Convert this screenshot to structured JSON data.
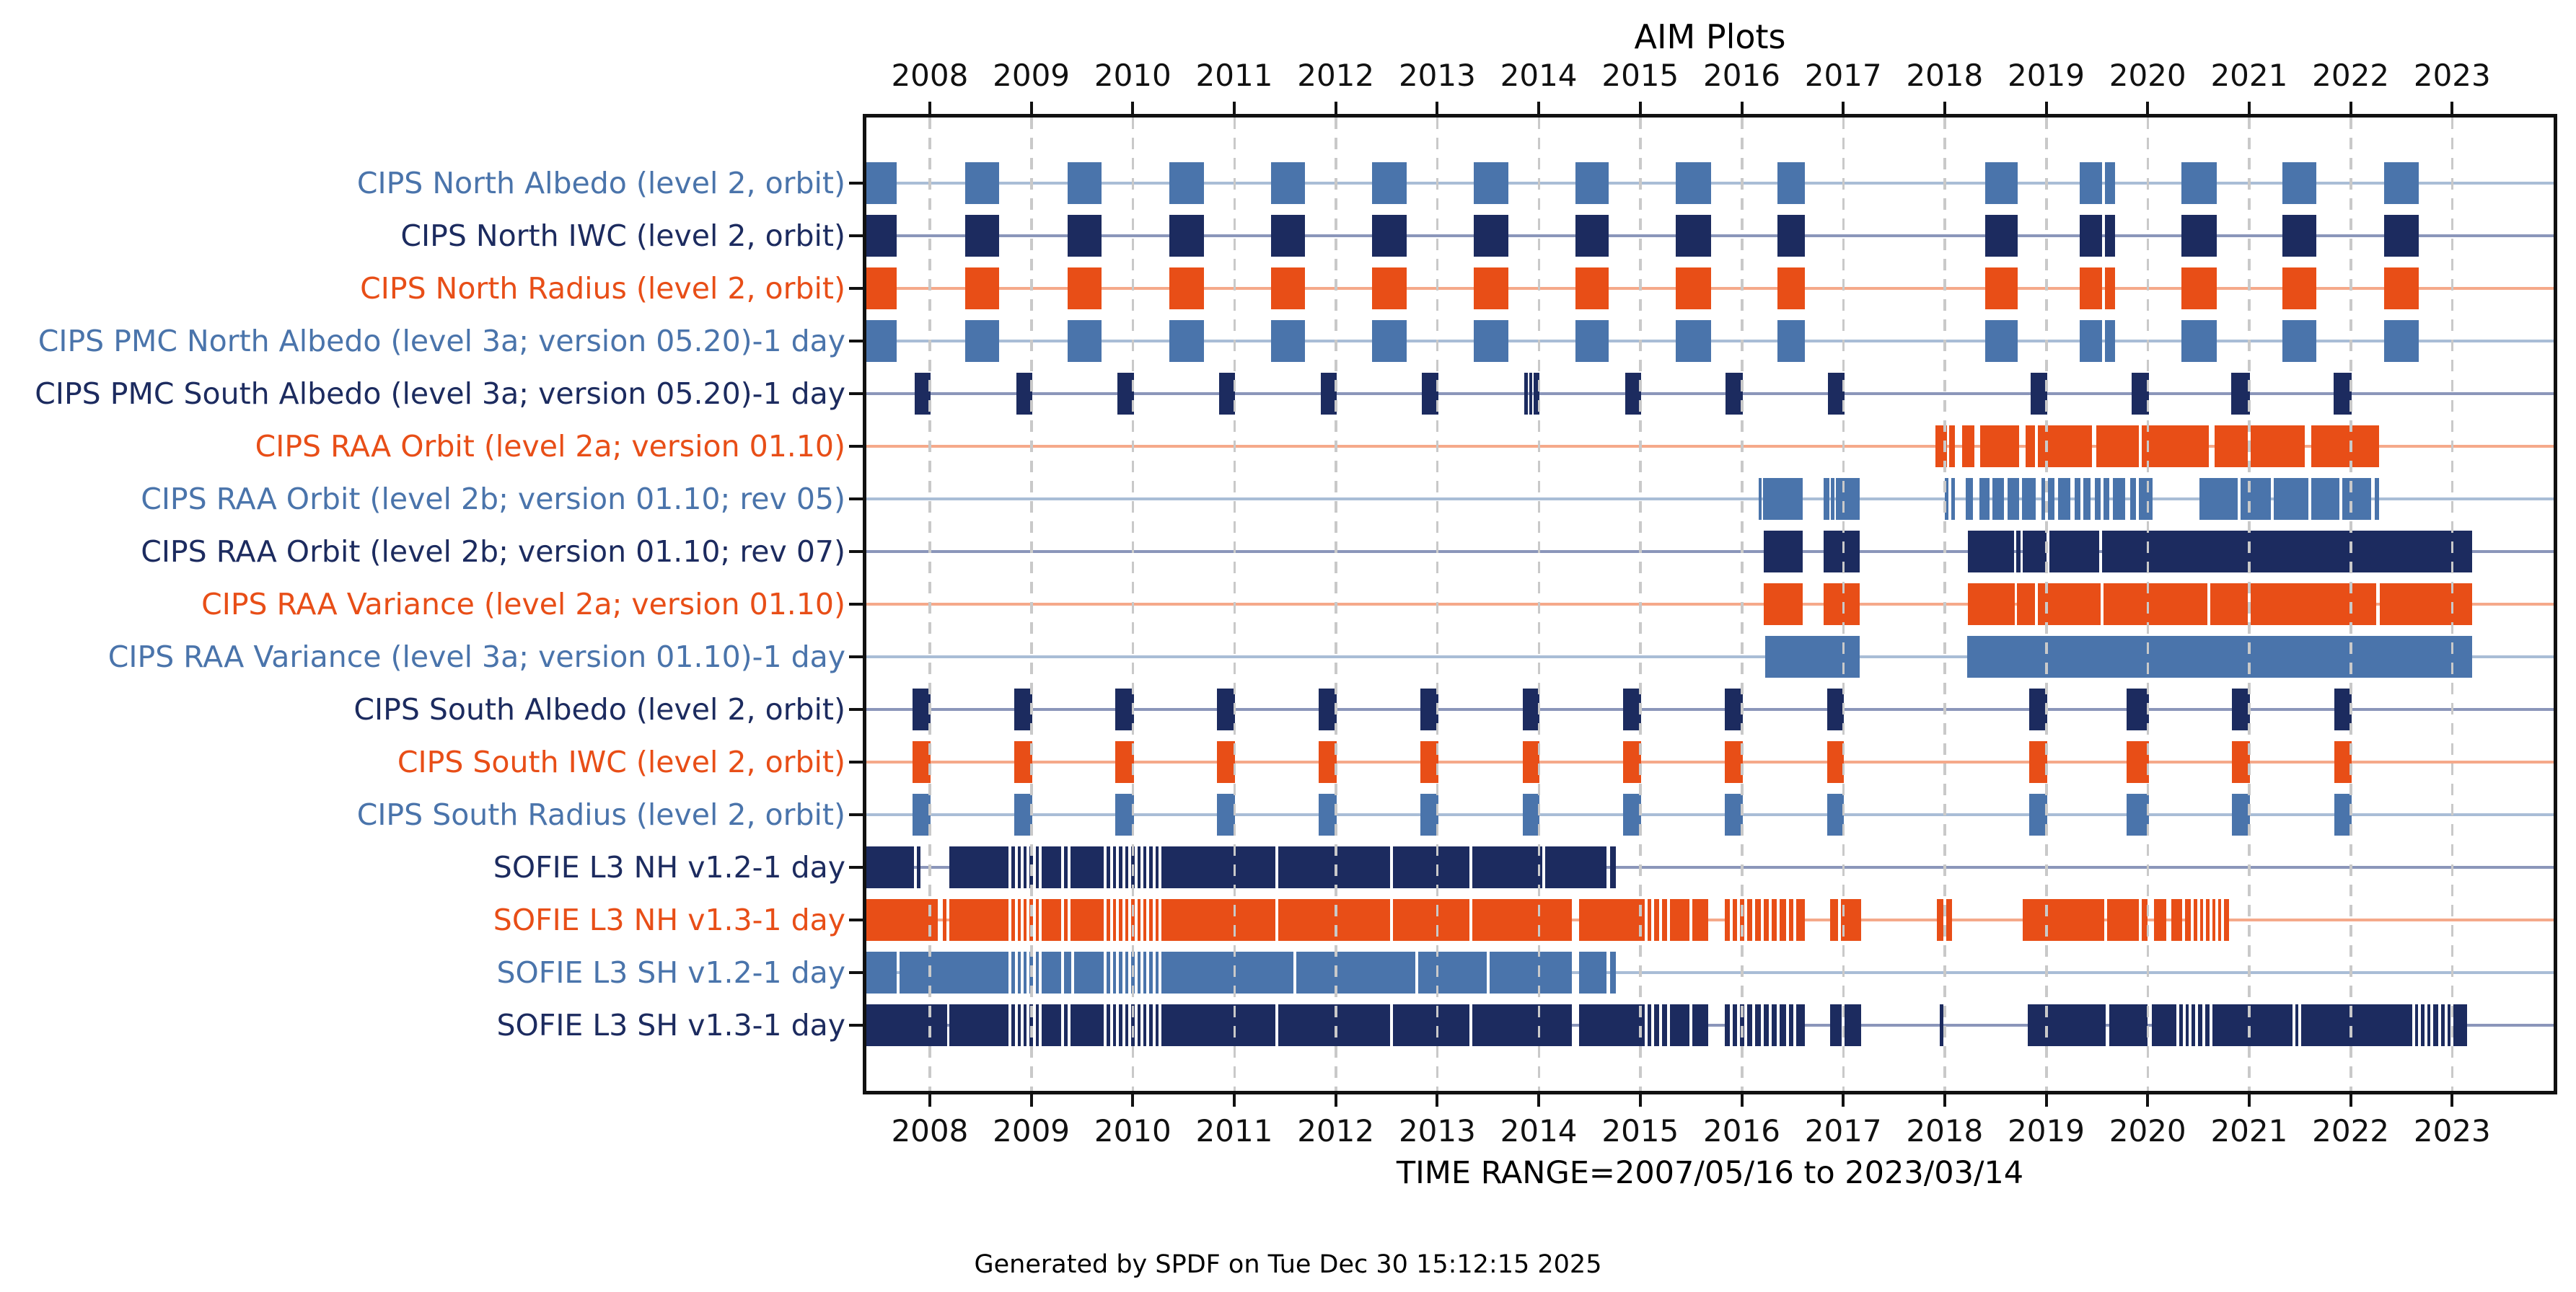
{
  "figure": {
    "title": "AIM Plots",
    "time_range_label": "TIME RANGE=2007/05/16 to 2023/03/14",
    "generated_label": "Generated by SPDF on Tue Dec 30 15:12:15 2025"
  },
  "colors": {
    "steelblue": "#4a74ab",
    "navy": "#1c2b5f",
    "orange": "#e84e17",
    "steelblue_light": "#a9bdd6",
    "navy_light": "#8b96ba",
    "orange_light": "#f5a98a",
    "grid": "#c9c9c9",
    "axis": "#111111",
    "text": "#111111"
  },
  "chart_data": {
    "type": "bar",
    "subtype": "horizontal-interval-timeline",
    "title": "AIM Plots",
    "xlabel": "TIME RANGE=2007/05/16 to 2023/03/14",
    "x_axis_units": "year",
    "x_range_years": [
      2007.375,
      2024.0
    ],
    "x_ticks": [
      2008,
      2009,
      2010,
      2011,
      2012,
      2013,
      2014,
      2015,
      2016,
      2017,
      2018,
      2019,
      2020,
      2021,
      2022,
      2023
    ],
    "x_tick_labels": [
      "2008",
      "2009",
      "2010",
      "2011",
      "2012",
      "2013",
      "2014",
      "2015",
      "2016",
      "2017",
      "2018",
      "2019",
      "2020",
      "2021",
      "2022",
      "2023"
    ],
    "grid": true,
    "grid_style": "dashed-vertical",
    "legend_position": "none",
    "rows": [
      {
        "label": "CIPS North Albedo (level 2, orbit)",
        "color": "steelblue",
        "segments": [
          [
            2007.375,
            2007.67
          ],
          [
            2008.35,
            2008.68
          ],
          [
            2009.36,
            2009.69
          ],
          [
            2010.36,
            2010.7
          ],
          [
            2011.36,
            2011.7
          ],
          [
            2012.36,
            2012.7
          ],
          [
            2013.36,
            2013.7
          ],
          [
            2014.36,
            2014.69
          ],
          [
            2015.35,
            2015.7
          ],
          [
            2016.35,
            2016.62
          ],
          [
            2018.4,
            2018.72
          ],
          [
            2019.33,
            2019.55
          ],
          [
            2019.58,
            2019.68
          ],
          [
            2020.33,
            2020.68
          ],
          [
            2021.33,
            2021.66
          ],
          [
            2022.33,
            2022.67
          ]
        ],
        "gaps": []
      },
      {
        "label": "CIPS North IWC (level 2, orbit)",
        "color": "navy",
        "segments": [
          [
            2007.375,
            2007.67
          ],
          [
            2008.35,
            2008.68
          ],
          [
            2009.36,
            2009.69
          ],
          [
            2010.36,
            2010.7
          ],
          [
            2011.36,
            2011.7
          ],
          [
            2012.36,
            2012.7
          ],
          [
            2013.36,
            2013.7
          ],
          [
            2014.36,
            2014.69
          ],
          [
            2015.35,
            2015.7
          ],
          [
            2016.35,
            2016.62
          ],
          [
            2018.4,
            2018.72
          ],
          [
            2019.33,
            2019.55
          ],
          [
            2019.58,
            2019.68
          ],
          [
            2020.33,
            2020.68
          ],
          [
            2021.33,
            2021.66
          ],
          [
            2022.33,
            2022.67
          ]
        ],
        "gaps": []
      },
      {
        "label": "CIPS North Radius (level 2, orbit)",
        "color": "orange",
        "segments": [
          [
            2007.375,
            2007.67
          ],
          [
            2008.35,
            2008.68
          ],
          [
            2009.36,
            2009.69
          ],
          [
            2010.36,
            2010.7
          ],
          [
            2011.36,
            2011.7
          ],
          [
            2012.36,
            2012.7
          ],
          [
            2013.36,
            2013.7
          ],
          [
            2014.36,
            2014.69
          ],
          [
            2015.35,
            2015.7
          ],
          [
            2016.35,
            2016.62
          ],
          [
            2018.4,
            2018.72
          ],
          [
            2019.33,
            2019.55
          ],
          [
            2019.58,
            2019.68
          ],
          [
            2020.33,
            2020.68
          ],
          [
            2021.33,
            2021.66
          ],
          [
            2022.33,
            2022.67
          ]
        ],
        "gaps": []
      },
      {
        "label": "CIPS PMC North Albedo (level 3a; version 05.20)-1 day",
        "color": "steelblue",
        "segments": [
          [
            2007.375,
            2007.67
          ],
          [
            2008.35,
            2008.68
          ],
          [
            2009.36,
            2009.69
          ],
          [
            2010.36,
            2010.7
          ],
          [
            2011.36,
            2011.7
          ],
          [
            2012.36,
            2012.7
          ],
          [
            2013.36,
            2013.7
          ],
          [
            2014.36,
            2014.69
          ],
          [
            2015.35,
            2015.7
          ],
          [
            2016.35,
            2016.62
          ],
          [
            2018.4,
            2018.72
          ],
          [
            2019.33,
            2019.55
          ],
          [
            2019.58,
            2019.68
          ],
          [
            2020.33,
            2020.68
          ],
          [
            2021.33,
            2021.66
          ],
          [
            2022.33,
            2022.67
          ]
        ],
        "gaps": []
      },
      {
        "label": "CIPS PMC South Albedo (level 3a; version 05.20)-1 day",
        "color": "navy",
        "segments": [
          [
            2007.85,
            2008.01
          ],
          [
            2008.85,
            2009.01
          ],
          [
            2009.85,
            2010.01
          ],
          [
            2010.85,
            2011.01
          ],
          [
            2011.85,
            2012.01
          ],
          [
            2012.85,
            2013.01
          ],
          [
            2013.86,
            2013.89
          ],
          [
            2013.905,
            2013.935
          ],
          [
            2013.95,
            2014.01
          ],
          [
            2014.85,
            2015.01
          ],
          [
            2015.84,
            2016.01
          ],
          [
            2016.85,
            2017.01
          ],
          [
            2018.85,
            2019.01
          ],
          [
            2019.84,
            2020.01
          ],
          [
            2020.82,
            2021.01
          ],
          [
            2021.83,
            2022.01
          ]
        ],
        "gaps": []
      },
      {
        "label": "CIPS RAA Orbit (level 2a; version 01.10)",
        "color": "orange",
        "segments": [
          [
            2017.91,
            2018.02
          ],
          [
            2018.045,
            2018.1
          ],
          [
            2018.17,
            2018.29
          ],
          [
            2018.35,
            2018.73
          ],
          [
            2018.8,
            2019.45
          ],
          [
            2019.49,
            2020.6
          ],
          [
            2020.66,
            2021.55
          ],
          [
            2021.61,
            2022.28
          ]
        ],
        "gaps": [
          2018.9,
          2019.93,
          2021.0
        ]
      },
      {
        "label": "CIPS RAA Orbit (level 2b; version 01.10; rev 05)",
        "color": "steelblue",
        "segments": [
          [
            2016.17,
            2016.195
          ],
          [
            2016.21,
            2016.6
          ],
          [
            2016.81,
            2016.865
          ],
          [
            2016.88,
            2016.915
          ],
          [
            2016.93,
            2017.16
          ],
          [
            2018.0,
            2018.1
          ],
          [
            2018.21,
            2018.28
          ],
          [
            2018.34,
            2018.44
          ],
          [
            2018.47,
            2018.58
          ],
          [
            2018.62,
            2018.73
          ],
          [
            2018.76,
            2018.9
          ],
          [
            2018.95,
            2019.08
          ],
          [
            2019.12,
            2019.24
          ],
          [
            2019.28,
            2019.44
          ],
          [
            2019.48,
            2019.62
          ],
          [
            2019.66,
            2019.78
          ],
          [
            2019.83,
            2020.05
          ],
          [
            2020.51,
            2021.21
          ],
          [
            2021.24,
            2022.2
          ],
          [
            2022.24,
            2022.28
          ]
        ],
        "gaps": [
          2018.05,
          2019.0,
          2019.35,
          2019.55,
          2019.9,
          2020.9,
          2021.6,
          2021.9
        ]
      },
      {
        "label": "CIPS RAA Orbit (level 2b; version 01.10; rev 07)",
        "color": "navy",
        "segments": [
          [
            2016.22,
            2016.6
          ],
          [
            2016.81,
            2017.16
          ],
          [
            2018.23,
            2018.685
          ],
          [
            2018.705,
            2018.745
          ],
          [
            2018.765,
            2019.52
          ],
          [
            2019.55,
            2023.2
          ]
        ],
        "gaps": [
          2019.02
        ]
      },
      {
        "label": "CIPS RAA Variance (level 2a; version 01.10)",
        "color": "orange",
        "segments": [
          [
            2016.22,
            2016.6
          ],
          [
            2016.81,
            2017.16
          ],
          [
            2018.23,
            2018.69
          ],
          [
            2018.71,
            2022.25
          ],
          [
            2022.285,
            2023.2
          ]
        ],
        "gaps": [
          2018.9,
          2019.55,
          2020.6,
          2021.0
        ]
      },
      {
        "label": "CIPS RAA Variance (level 3a; version 01.10)-1 day",
        "color": "steelblue",
        "segments": [
          [
            2016.23,
            2017.16
          ],
          [
            2018.22,
            2023.2
          ]
        ],
        "gaps": []
      },
      {
        "label": "CIPS South Albedo (level 2, orbit)",
        "color": "navy",
        "segments": [
          [
            2007.83,
            2008.01
          ],
          [
            2008.83,
            2009.01
          ],
          [
            2009.83,
            2010.01
          ],
          [
            2010.83,
            2011.01
          ],
          [
            2011.83,
            2012.01
          ],
          [
            2012.83,
            2013.01
          ],
          [
            2013.84,
            2014.01
          ],
          [
            2014.83,
            2015.01
          ],
          [
            2015.83,
            2016.01
          ],
          [
            2016.84,
            2017.01
          ],
          [
            2018.83,
            2019.01
          ],
          [
            2019.79,
            2020.01
          ],
          [
            2020.83,
            2021.01
          ],
          [
            2021.84,
            2022.01
          ]
        ],
        "gaps": []
      },
      {
        "label": "CIPS South IWC (level 2, orbit)",
        "color": "orange",
        "segments": [
          [
            2007.83,
            2008.01
          ],
          [
            2008.83,
            2009.01
          ],
          [
            2009.83,
            2010.01
          ],
          [
            2010.83,
            2011.01
          ],
          [
            2011.83,
            2012.01
          ],
          [
            2012.83,
            2013.01
          ],
          [
            2013.84,
            2014.01
          ],
          [
            2014.83,
            2015.01
          ],
          [
            2015.83,
            2016.01
          ],
          [
            2016.84,
            2017.01
          ],
          [
            2018.83,
            2019.01
          ],
          [
            2019.79,
            2020.01
          ],
          [
            2020.83,
            2021.01
          ],
          [
            2021.84,
            2022.01
          ]
        ],
        "gaps": []
      },
      {
        "label": "CIPS South Radius (level 2, orbit)",
        "color": "steelblue",
        "segments": [
          [
            2007.83,
            2008.01
          ],
          [
            2008.83,
            2009.01
          ],
          [
            2009.83,
            2010.01
          ],
          [
            2010.83,
            2011.01
          ],
          [
            2011.83,
            2012.01
          ],
          [
            2012.83,
            2013.01
          ],
          [
            2013.84,
            2014.01
          ],
          [
            2014.83,
            2015.01
          ],
          [
            2015.83,
            2016.01
          ],
          [
            2016.84,
            2017.01
          ],
          [
            2018.83,
            2019.01
          ],
          [
            2019.79,
            2020.01
          ],
          [
            2020.83,
            2021.01
          ],
          [
            2021.84,
            2022.01
          ]
        ],
        "gaps": []
      },
      {
        "label": "SOFIE L3 NH v1.2-1 day",
        "color": "navy",
        "segments": [
          [
            2007.375,
            2007.845
          ],
          [
            2007.87,
            2007.91
          ],
          [
            2008.19,
            2014.67
          ],
          [
            2014.7,
            2014.76
          ]
        ],
        "gaps": [
          2008.79,
          2008.85,
          2008.91,
          2008.97,
          2009.03,
          2009.09,
          2009.31,
          2009.37,
          2009.73,
          2009.79,
          2009.85,
          2009.91,
          2009.97,
          2010.03,
          2010.09,
          2010.15,
          2010.21,
          2010.27,
          2011.42,
          2012.55,
          2013.33,
          2014.05
        ]
      },
      {
        "label": "SOFIE L3 NH v1.3-1 day",
        "color": "orange",
        "segments": [
          [
            2007.375,
            2008.08
          ],
          [
            2008.125,
            2008.165
          ],
          [
            2008.19,
            2014.33
          ],
          [
            2014.4,
            2015.67
          ],
          [
            2015.83,
            2016.62
          ],
          [
            2016.87,
            2017.18
          ],
          [
            2017.92,
            2018.07
          ],
          [
            2018.77,
            2019.57
          ],
          [
            2019.6,
            2020.0
          ],
          [
            2020.06,
            2020.18
          ],
          [
            2020.23,
            2020.34
          ],
          [
            2020.37,
            2020.8
          ]
        ],
        "gaps": [
          2008.79,
          2008.85,
          2008.91,
          2008.97,
          2009.03,
          2009.09,
          2009.31,
          2009.37,
          2009.73,
          2009.79,
          2009.85,
          2009.91,
          2009.97,
          2010.03,
          2010.09,
          2010.15,
          2010.21,
          2010.27,
          2011.42,
          2012.55,
          2013.33,
          2015.06,
          2015.12,
          2015.2,
          2015.28,
          2015.5,
          2015.9,
          2015.97,
          2016.04,
          2016.12,
          2016.2,
          2016.28,
          2016.36,
          2016.45,
          2016.52,
          2016.96,
          2018.0,
          2019.93,
          2020.44,
          2020.5,
          2020.56,
          2020.62,
          2020.68,
          2020.74
        ]
      },
      {
        "label": "SOFIE L3 SH v1.2-1 day",
        "color": "steelblue",
        "segments": [
          [
            2007.375,
            2007.675
          ],
          [
            2007.7,
            2014.33
          ],
          [
            2014.4,
            2014.67
          ],
          [
            2014.7,
            2014.76
          ]
        ],
        "gaps": [
          2008.79,
          2008.85,
          2008.91,
          2008.97,
          2009.03,
          2009.09,
          2009.31,
          2009.41,
          2009.73,
          2009.79,
          2009.85,
          2009.91,
          2009.97,
          2010.03,
          2010.09,
          2010.15,
          2010.21,
          2010.27,
          2011.6,
          2012.8,
          2013.5
        ]
      },
      {
        "label": "SOFIE L3 SH v1.3-1 day",
        "color": "navy",
        "segments": [
          [
            2007.375,
            2008.17
          ],
          [
            2008.19,
            2014.33
          ],
          [
            2014.4,
            2015.67
          ],
          [
            2015.83,
            2016.62
          ],
          [
            2016.87,
            2017.18
          ],
          [
            2017.95,
            2017.99
          ],
          [
            2018.82,
            2019.59
          ],
          [
            2019.62,
            2020.0
          ],
          [
            2020.04,
            2023.15
          ]
        ],
        "gaps": [
          2008.79,
          2008.85,
          2008.91,
          2008.97,
          2009.03,
          2009.09,
          2009.31,
          2009.37,
          2009.73,
          2009.79,
          2009.85,
          2009.91,
          2009.97,
          2010.03,
          2010.09,
          2010.15,
          2010.21,
          2010.27,
          2011.42,
          2012.55,
          2013.33,
          2015.06,
          2015.12,
          2015.2,
          2015.28,
          2015.5,
          2015.9,
          2015.97,
          2016.04,
          2016.12,
          2016.2,
          2016.28,
          2016.36,
          2016.45,
          2016.52,
          2017.0,
          2020.3,
          2020.36,
          2020.42,
          2020.48,
          2020.55,
          2020.62,
          2021.44,
          2021.5,
          2022.62,
          2022.68,
          2022.74,
          2022.8,
          2022.88,
          2022.94,
          2023.0
        ]
      }
    ]
  }
}
